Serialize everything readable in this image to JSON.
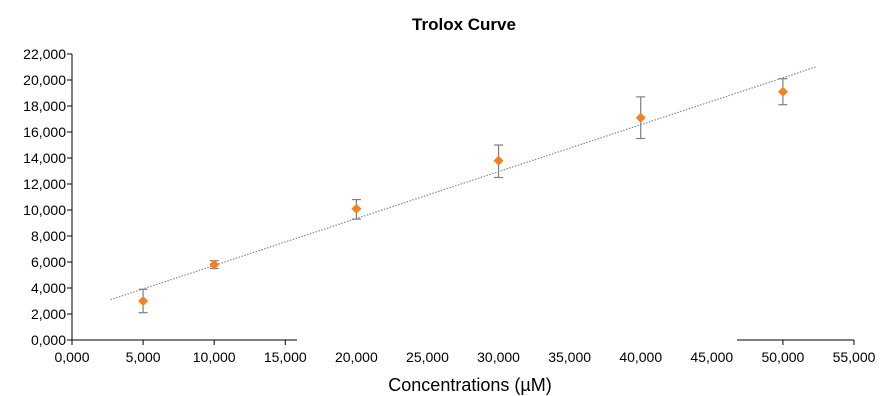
{
  "chart_data": {
    "type": "scatter",
    "title": "Trolox Curve",
    "xlabel": "Concentrations (µM)",
    "ylabel": "",
    "xlim": [
      0,
      55000
    ],
    "ylim": [
      0,
      22000
    ],
    "x_ticks": [
      "0,000",
      "5,000",
      "10,000",
      "15,000",
      "20,000",
      "25,000",
      "30,000",
      "35,000",
      "40,000",
      "45,000",
      "50,000",
      "55,000"
    ],
    "y_ticks": [
      "0,000",
      "2,000",
      "4,000",
      "6,000",
      "8,000",
      "10,000",
      "12,000",
      "14,000",
      "16,000",
      "18,000",
      "20,000",
      "22,000"
    ],
    "x_tick_values": [
      0,
      5000,
      10000,
      15000,
      20000,
      25000,
      30000,
      35000,
      40000,
      45000,
      50000,
      55000
    ],
    "y_tick_values": [
      0,
      2000,
      4000,
      6000,
      8000,
      10000,
      12000,
      14000,
      16000,
      18000,
      20000,
      22000
    ],
    "grid": false,
    "legend": "none",
    "marker_color": "#f58220",
    "error_color": "#7f7f7f",
    "trendline_color": "#8a8a8a",
    "series": [
      {
        "points": [
          {
            "x": 5000,
            "y": 3000,
            "err_low": 2100,
            "err_high": 3900
          },
          {
            "x": 10000,
            "y": 5800,
            "err_low": 5500,
            "err_high": 6100
          },
          {
            "x": 20000,
            "y": 10100,
            "err_low": 9300,
            "err_high": 10800
          },
          {
            "x": 30000,
            "y": 13800,
            "err_low": 12500,
            "err_high": 15000
          },
          {
            "x": 40000,
            "y": 17100,
            "err_low": 15500,
            "err_high": 18700
          },
          {
            "x": 50000,
            "y": 19100,
            "err_low": 18100,
            "err_high": 20100
          }
        ]
      }
    ],
    "trendline": {
      "type": "linear",
      "x_start": 2700,
      "y_start": 3100,
      "x_end": 52300,
      "y_end": 21000
    }
  }
}
